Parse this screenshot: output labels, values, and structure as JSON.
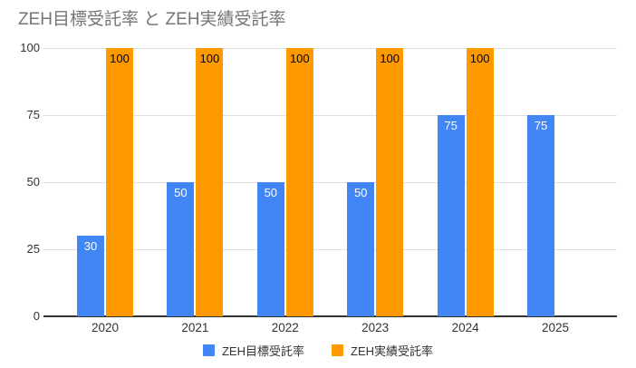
{
  "chart_data": {
    "type": "bar",
    "title": "ZEH目標受託率 と ZEH実績受託率",
    "categories": [
      "2020",
      "2021",
      "2022",
      "2023",
      "2024",
      "2025"
    ],
    "series": [
      {
        "name": "ZEH目標受託率",
        "color": "#4285F4",
        "label_color": "#ffffff",
        "values": [
          30,
          50,
          50,
          50,
          75,
          75
        ]
      },
      {
        "name": "ZEH実績受託率",
        "color": "#FF9900",
        "label_color": "#000000",
        "values": [
          100,
          100,
          100,
          100,
          100,
          null
        ]
      }
    ],
    "xlabel": "",
    "ylabel": "",
    "ylim": [
      0,
      100
    ],
    "yticks": [
      0,
      25,
      50,
      75,
      100
    ],
    "grid": true,
    "legend_position": "bottom",
    "bar_value_labels": true
  },
  "colors": {
    "background": "#ffffff",
    "title_text": "#757575",
    "axis_text": "#333333",
    "gridline": "#e0e0e0",
    "axis_line": "#333333",
    "legend_text": "#333333"
  }
}
